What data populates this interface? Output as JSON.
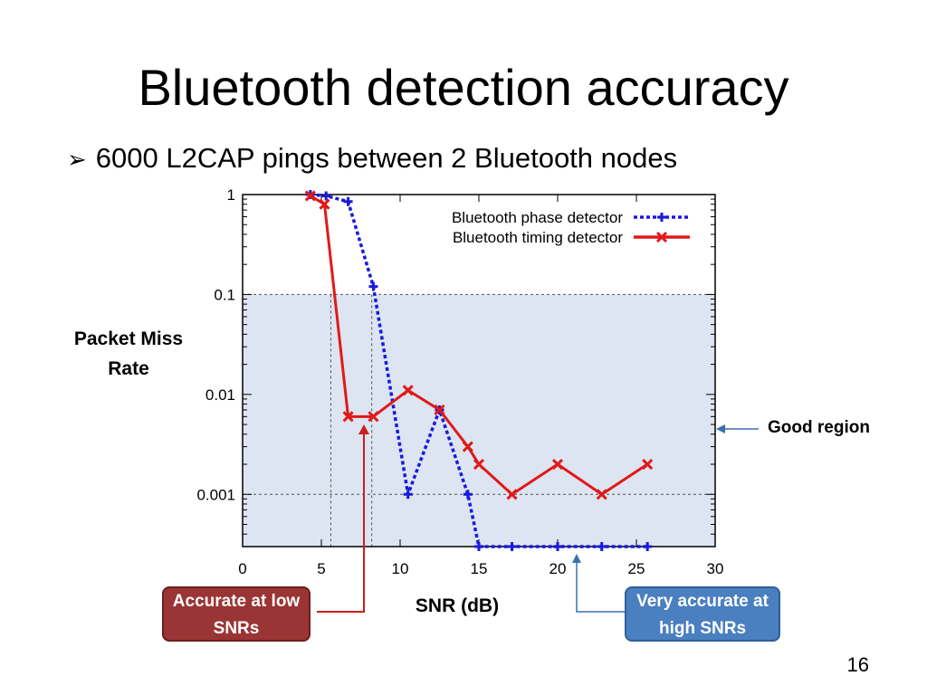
{
  "slide": {
    "title": "Bluetooth detection accuracy",
    "bullet": "6000 L2CAP pings between 2 Bluetooth nodes",
    "page_number": "16"
  },
  "annotations": {
    "good_region": "Good region",
    "low_snr": "Accurate at low SNRs",
    "high_snr": "Very accurate at high SNRs"
  },
  "colors": {
    "phase": "#1a1adc",
    "timing": "#e11919",
    "good_region_fill": "#dce5f1",
    "callout_low": "#9b3434",
    "callout_high": "#4a7fc0"
  },
  "chart_data": {
    "type": "line",
    "title": "",
    "xlabel": "SNR (dB)",
    "ylabel": "Packet Miss Rate",
    "xlim": [
      0,
      30
    ],
    "ylim": [
      0.0003,
      1
    ],
    "yscale": "log",
    "xticks": [
      "0",
      "5",
      "10",
      "15",
      "20",
      "25",
      "30"
    ],
    "yticks": [
      "1",
      "0.1",
      "0.01",
      "0.001"
    ],
    "legend_position": "top-right",
    "shaded_region": {
      "label": "Good region",
      "y_max": 0.1
    },
    "series": [
      {
        "name": "Bluetooth phase detector",
        "style": "dotted",
        "marker": "plus",
        "x": [
          4.3,
          5.3,
          6.7,
          8.3,
          10.5,
          12.5,
          14.3,
          15.0,
          17.1,
          20.0,
          22.8,
          25.7
        ],
        "y": [
          1.0,
          0.97,
          0.85,
          0.12,
          0.001,
          0.007,
          0.001,
          0.0003,
          0.0003,
          0.0003,
          0.0003,
          0.0003
        ]
      },
      {
        "name": "Bluetooth timing detector",
        "style": "solid",
        "marker": "cross",
        "x": [
          4.3,
          5.2,
          6.7,
          8.3,
          10.5,
          12.5,
          14.3,
          15.0,
          17.1,
          20.0,
          22.8,
          25.7
        ],
        "y": [
          0.97,
          0.8,
          0.006,
          0.006,
          0.011,
          0.007,
          0.003,
          0.002,
          0.001,
          0.002,
          0.001,
          0.002
        ]
      }
    ]
  }
}
